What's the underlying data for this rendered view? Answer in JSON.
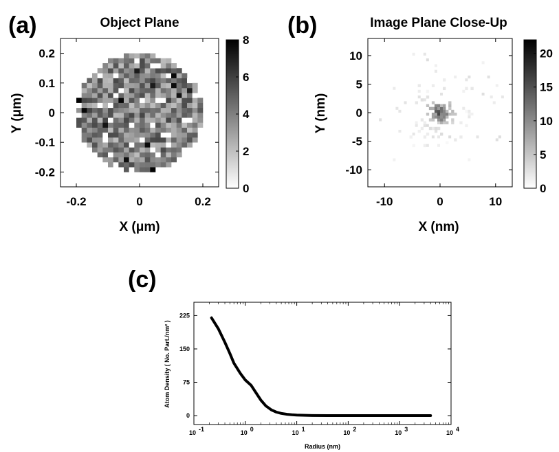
{
  "panels": {
    "a": {
      "letter": "(a)",
      "title": "Object Plane"
    },
    "b": {
      "letter": "(b)",
      "title": "Image Plane Close-Up"
    },
    "c": {
      "letter": "(c)"
    }
  },
  "chart_data": [
    {
      "type": "heatmap",
      "title": "Object Plane",
      "xlabel": "X (μm)",
      "ylabel": "Y (μm)",
      "xlim": [
        -0.25,
        0.25
      ],
      "ylim": [
        -0.25,
        0.25
      ],
      "xticks": [
        -0.2,
        0,
        0.2
      ],
      "xtick_labels": [
        "-0.2",
        "0",
        "0.2"
      ],
      "yticks": [
        0.2,
        0.1,
        0,
        -0.1,
        -0.2
      ],
      "ytick_labels": [
        "0.2",
        "0.1",
        "0",
        "-0.1",
        "-0.2"
      ],
      "colorbar": {
        "min": 0,
        "max": 8,
        "ticks": [
          8,
          6,
          4,
          2,
          0
        ],
        "tick_labels": [
          "8",
          "6",
          "4",
          "2",
          "0"
        ],
        "colormap": "gray-reversed"
      },
      "grid": false,
      "description_of_values": "Disk of radius ~0.2 um filled with pixels of atom counts mostly 2-6, with scattered 0 and 7-8 values"
    },
    {
      "type": "heatmap",
      "title": "Image Plane Close-Up",
      "xlabel": "X (nm)",
      "ylabel": "Y (nm)",
      "xlim": [
        -13,
        13
      ],
      "ylim": [
        -13,
        13
      ],
      "xticks": [
        -10,
        0,
        10
      ],
      "xtick_labels": [
        "-10",
        "0",
        "10"
      ],
      "yticks": [
        10,
        5,
        0,
        -5,
        -10
      ],
      "ytick_labels": [
        "10",
        "5",
        "0",
        "-5",
        "-10"
      ],
      "colorbar": {
        "min": 0,
        "max": 22,
        "ticks": [
          20,
          15,
          10,
          5,
          0
        ],
        "tick_labels": [
          "20",
          "15",
          "10",
          "5",
          "0"
        ],
        "colormap": "gray-reversed"
      },
      "grid": false,
      "description_of_values": "Sharp peak near origin (~22) decaying over a few nm; sparse isolated counts farther out"
    },
    {
      "type": "line",
      "xlabel": "Radius (nm)",
      "ylabel": "Atom Density ( No. Part./nm² )",
      "xscale": "log",
      "xlim": [
        0.1,
        10000
      ],
      "ylim": [
        -20,
        255
      ],
      "xticks": [
        0.1,
        1,
        10,
        100,
        1000,
        10000
      ],
      "xtick_labels": [
        [
          "10",
          "-1"
        ],
        [
          "10",
          "0"
        ],
        [
          "10",
          "1"
        ],
        [
          "10",
          "2"
        ],
        [
          "10",
          "3"
        ],
        [
          "10",
          "4"
        ]
      ],
      "yticks": [
        225,
        150,
        75,
        0
      ],
      "ytick_labels": [
        "225",
        "150",
        "75",
        "0"
      ],
      "grid": false,
      "series": [
        {
          "color": "#000000",
          "x": [
            0.22,
            0.3,
            0.4,
            0.5,
            0.6,
            0.8,
            1.0,
            1.3,
            1.6,
            2.0,
            2.5,
            3.2,
            4.0,
            5.0,
            6.5,
            8.0,
            10,
            15,
            20,
            40,
            100,
            1000,
            4000
          ],
          "y": [
            220,
            195,
            165,
            140,
            118,
            95,
            80,
            68,
            52,
            35,
            22,
            13,
            8,
            5,
            3,
            2,
            1.2,
            0.6,
            0.3,
            0.1,
            0,
            0,
            0
          ]
        }
      ]
    }
  ]
}
